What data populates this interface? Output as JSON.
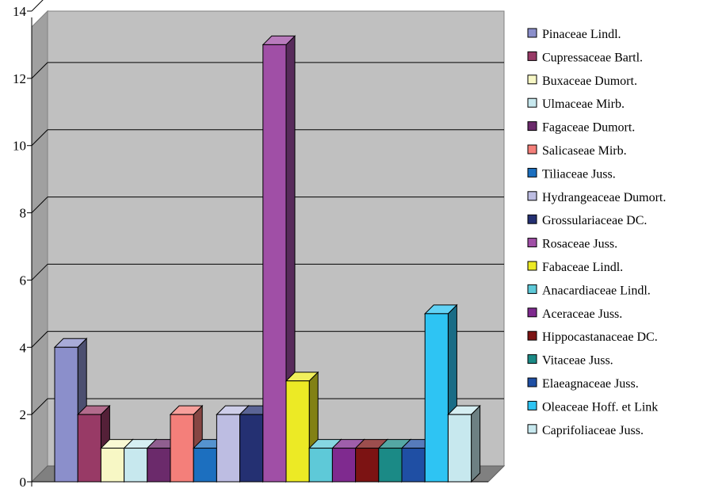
{
  "chart_data": {
    "type": "bar",
    "title": "",
    "xlabel": "",
    "ylabel": "",
    "ylim": [
      0,
      14
    ],
    "yticks": [
      0,
      2,
      4,
      6,
      8,
      10,
      12,
      14
    ],
    "grid": true,
    "style": "3d-clustered-column",
    "legend_position": "right",
    "series": [
      {
        "name": "Pinaceae Lindl.",
        "value": 4,
        "color": "#8b8fcb"
      },
      {
        "name": "Cupressaceae Bartl.",
        "value": 2,
        "color": "#983a66"
      },
      {
        "name": "Buxaceae Dumort.",
        "value": 1,
        "color": "#f7f7c5"
      },
      {
        "name": "Ulmaceae Mirb.",
        "value": 1,
        "color": "#c7e8ee"
      },
      {
        "name": "Fagaceae Dumort.",
        "value": 1,
        "color": "#6b2a6b"
      },
      {
        "name": "Salicaseae Mirb.",
        "value": 2,
        "color": "#f47f7a"
      },
      {
        "name": "Tiliaceae Juss.",
        "value": 1,
        "color": "#1c6fbf"
      },
      {
        "name": "Hydrangeaceae Dumort.",
        "value": 2,
        "color": "#bdbde2"
      },
      {
        "name": "Grossulariaceae DC.",
        "value": 2,
        "color": "#243072"
      },
      {
        "name": "Rosaceae Juss.",
        "value": 13,
        "color": "#a04fa6"
      },
      {
        "name": "Fabaceae Lindl.",
        "value": 3,
        "color": "#ecea25"
      },
      {
        "name": "Anacardiaceae Lindl.",
        "value": 1,
        "color": "#5ec9d8"
      },
      {
        "name": "Aceraceae Juss.",
        "value": 1,
        "color": "#7f2a8f"
      },
      {
        "name": "Hippocastanaceae DC.",
        "value": 1,
        "color": "#7c1313"
      },
      {
        "name": "Vitaceae Juss.",
        "value": 1,
        "color": "#1b8a86"
      },
      {
        "name": "Elaeagnaceae Juss.",
        "value": 1,
        "color": "#1f4fa4"
      },
      {
        "name": "Oleaceae Hoff. et  Link",
        "value": 5,
        "color": "#2ec4f3"
      },
      {
        "name": "Caprifoliaceae Juss.",
        "value": 2,
        "color": "#c7e8ee"
      }
    ]
  }
}
